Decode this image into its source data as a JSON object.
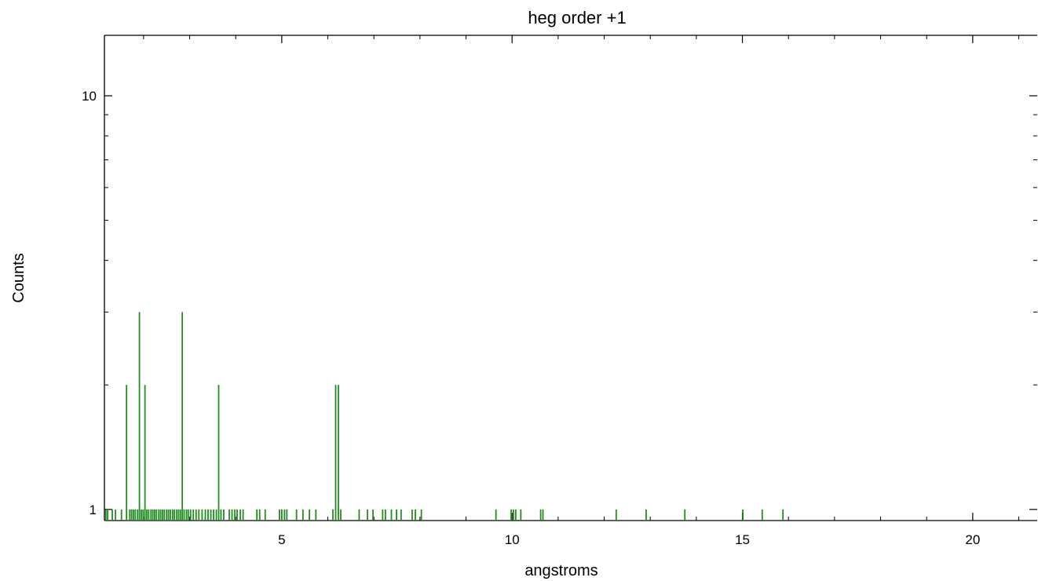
{
  "chart_data": {
    "type": "line",
    "title": "heg order +1",
    "xlabel": "angstroms",
    "ylabel": "Counts",
    "xlim": [
      1.15,
      21.4
    ],
    "ylim": [
      0.94,
      14
    ],
    "y_scale": "log",
    "grid": false,
    "line_color": "#228b22",
    "x_ticks": [
      5,
      10,
      15,
      20
    ],
    "y_ticks": [
      1,
      10
    ],
    "series": [
      {
        "points": [
          [
            1.18,
            1
          ],
          [
            1.22,
            1
          ],
          [
            1.32,
            1
          ],
          [
            1.39,
            1
          ],
          [
            1.52,
            1
          ],
          [
            1.63,
            2
          ],
          [
            1.7,
            1
          ],
          [
            1.74,
            1
          ],
          [
            1.78,
            1
          ],
          [
            1.82,
            1
          ],
          [
            1.87,
            1
          ],
          [
            1.91,
            3
          ],
          [
            1.95,
            1
          ],
          [
            1.99,
            1
          ],
          [
            2.03,
            2
          ],
          [
            2.07,
            1
          ],
          [
            2.11,
            1
          ],
          [
            2.16,
            1
          ],
          [
            2.2,
            1
          ],
          [
            2.24,
            1
          ],
          [
            2.28,
            1
          ],
          [
            2.33,
            1
          ],
          [
            2.37,
            1
          ],
          [
            2.41,
            1
          ],
          [
            2.45,
            1
          ],
          [
            2.5,
            1
          ],
          [
            2.54,
            1
          ],
          [
            2.58,
            1
          ],
          [
            2.63,
            1
          ],
          [
            2.67,
            1
          ],
          [
            2.72,
            1
          ],
          [
            2.76,
            1
          ],
          [
            2.8,
            1
          ],
          [
            2.84,
            3
          ],
          [
            2.88,
            1
          ],
          [
            2.93,
            1
          ],
          [
            2.97,
            1
          ],
          [
            3.02,
            1
          ],
          [
            3.08,
            1
          ],
          [
            3.14,
            1
          ],
          [
            3.2,
            1
          ],
          [
            3.27,
            1
          ],
          [
            3.34,
            1
          ],
          [
            3.4,
            1
          ],
          [
            3.46,
            1
          ],
          [
            3.52,
            1
          ],
          [
            3.58,
            1
          ],
          [
            3.63,
            2
          ],
          [
            3.68,
            1
          ],
          [
            3.74,
            1
          ],
          [
            3.86,
            1
          ],
          [
            3.92,
            1
          ],
          [
            3.98,
            1
          ],
          [
            4.03,
            1
          ],
          [
            4.1,
            1
          ],
          [
            4.16,
            1
          ],
          [
            4.46,
            1
          ],
          [
            4.52,
            1
          ],
          [
            4.64,
            1
          ],
          [
            4.95,
            1
          ],
          [
            5.0,
            1
          ],
          [
            5.06,
            1
          ],
          [
            5.11,
            1
          ],
          [
            5.32,
            1
          ],
          [
            5.46,
            1
          ],
          [
            5.6,
            1
          ],
          [
            5.74,
            1
          ],
          [
            6.11,
            1
          ],
          [
            6.17,
            2
          ],
          [
            6.23,
            2
          ],
          [
            6.28,
            1
          ],
          [
            6.68,
            1
          ],
          [
            6.86,
            1
          ],
          [
            6.98,
            1
          ],
          [
            7.19,
            1
          ],
          [
            7.25,
            1
          ],
          [
            7.38,
            1
          ],
          [
            7.49,
            1
          ],
          [
            7.59,
            1
          ],
          [
            7.83,
            1
          ],
          [
            7.9,
            1
          ],
          [
            8.03,
            1
          ],
          [
            9.65,
            1
          ],
          [
            9.98,
            1
          ],
          [
            10.03,
            1
          ],
          [
            10.08,
            1
          ],
          [
            10.19,
            1
          ],
          [
            10.62,
            1
          ],
          [
            10.67,
            1
          ],
          [
            12.26,
            1
          ],
          [
            12.91,
            1
          ],
          [
            13.75,
            1
          ],
          [
            15.01,
            1
          ],
          [
            15.43,
            1
          ],
          [
            15.88,
            1
          ]
        ]
      }
    ]
  }
}
